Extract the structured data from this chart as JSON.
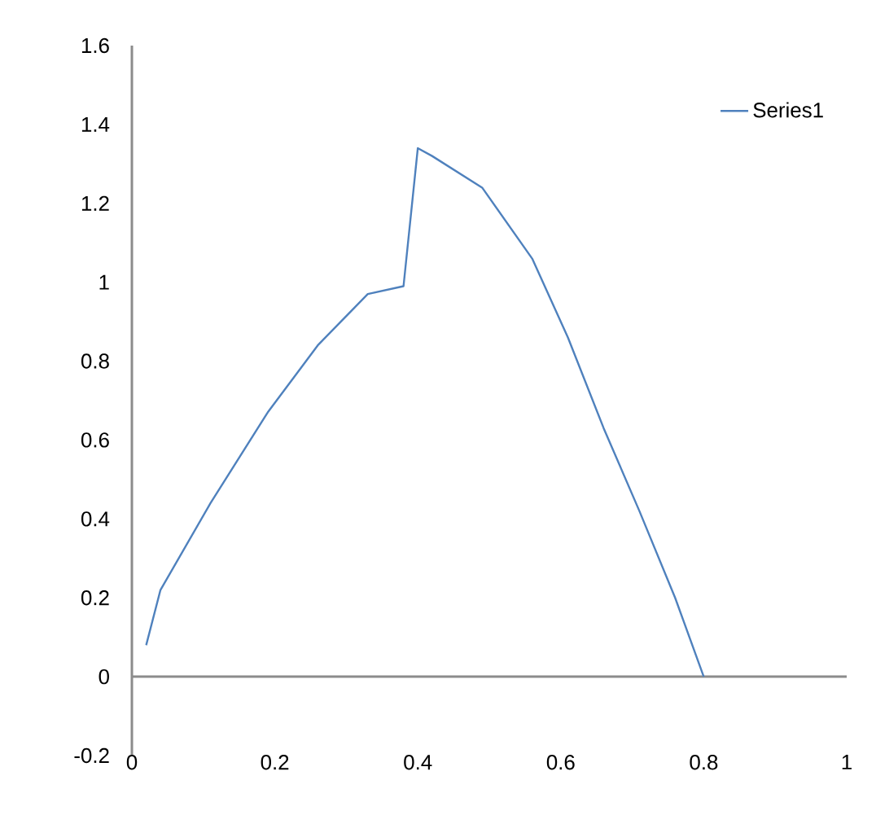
{
  "chart_data": {
    "type": "line",
    "x": [
      0.02,
      0.04,
      0.11,
      0.19,
      0.26,
      0.33,
      0.38,
      0.4,
      0.42,
      0.49,
      0.56,
      0.61,
      0.66,
      0.71,
      0.76,
      0.8
    ],
    "series": [
      {
        "name": "Series1",
        "color": "#4f81bd",
        "values": [
          0.08,
          0.22,
          0.44,
          0.67,
          0.84,
          0.97,
          0.99,
          1.34,
          1.32,
          1.24,
          1.06,
          0.86,
          0.63,
          0.42,
          0.2,
          0
        ]
      }
    ],
    "xlim": [
      0,
      1
    ],
    "xticks": [
      0,
      0.2,
      0.4,
      0.6,
      0.8,
      1
    ],
    "ylim": [
      -0.2,
      1.6
    ],
    "yticks": [
      -0.2,
      0,
      0.2,
      0.4,
      0.6,
      0.8,
      1,
      1.2,
      1.4,
      1.6
    ],
    "legend": "top right",
    "marker": "none",
    "line_style": "solid"
  }
}
